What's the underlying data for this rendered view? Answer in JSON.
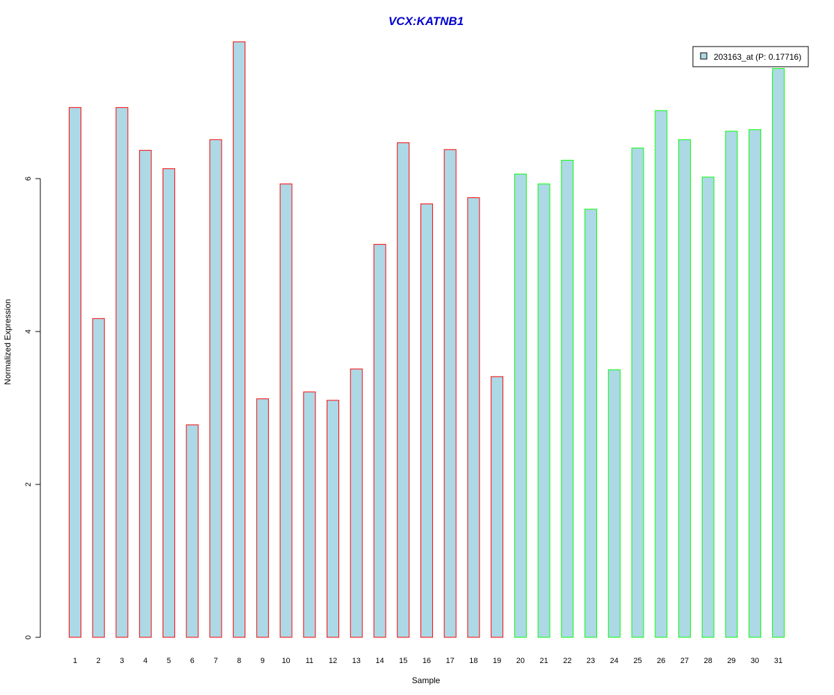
{
  "chart_data": {
    "type": "bar",
    "title": "VCX:KATNB1",
    "xlabel": "Sample",
    "ylabel": "Normalized Expression",
    "ylim": [
      0,
      7.8
    ],
    "yticks": [
      0,
      2,
      4,
      6
    ],
    "grid": false,
    "legend_position": "top-right",
    "categories": [
      "1",
      "2",
      "3",
      "4",
      "5",
      "6",
      "7",
      "8",
      "9",
      "10",
      "11",
      "12",
      "13",
      "14",
      "15",
      "16",
      "17",
      "18",
      "19",
      "20",
      "21",
      "22",
      "23",
      "24",
      "25",
      "26",
      "27",
      "28",
      "29",
      "30",
      "31"
    ],
    "series": [
      {
        "name": "203163_at (P: 0.17716)",
        "values": [
          6.93,
          4.17,
          6.93,
          6.37,
          6.13,
          2.78,
          6.51,
          7.79,
          3.12,
          5.93,
          3.21,
          3.1,
          3.51,
          5.14,
          6.47,
          5.67,
          6.38,
          5.75,
          3.41,
          6.06,
          5.93,
          6.24,
          5.6,
          3.5,
          6.4,
          6.89,
          6.51,
          6.02,
          6.62,
          6.64,
          7.44
        ],
        "fill_color": "#add8e6"
      }
    ],
    "bar_groups": [
      {
        "from": 1,
        "to": 19,
        "border_color": "#ff0000"
      },
      {
        "from": 20,
        "to": 31,
        "border_color": "#00ff00"
      }
    ]
  }
}
